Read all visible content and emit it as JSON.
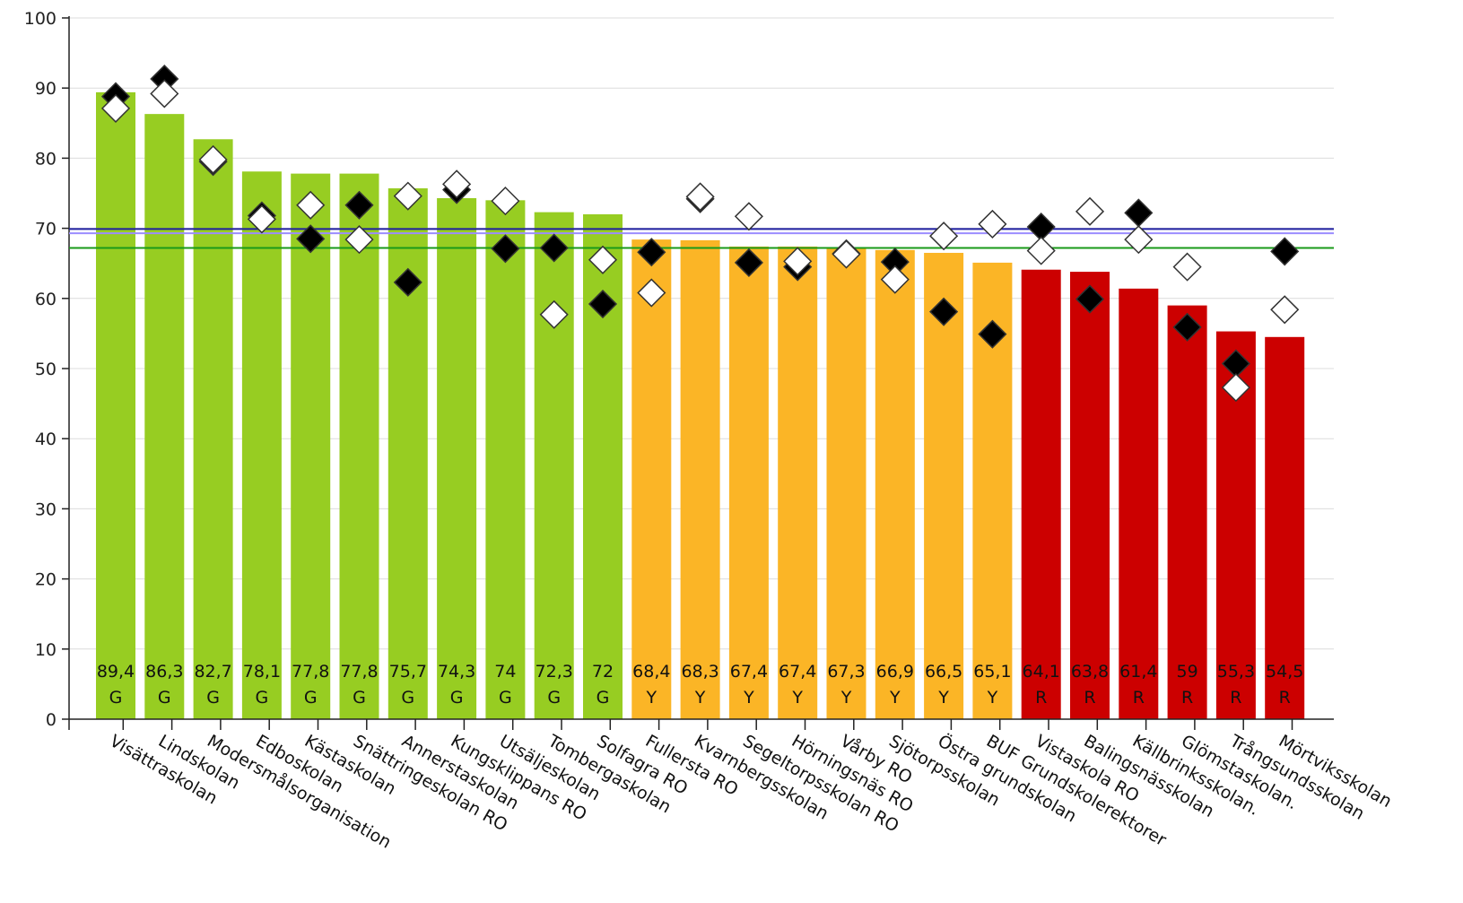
{
  "chart_data": {
    "type": "bar",
    "ylim": [
      0,
      100
    ],
    "yticks": [
      0,
      10,
      20,
      30,
      40,
      50,
      60,
      70,
      80,
      90,
      100
    ],
    "grid": true,
    "categories": [
      "Visättraskolan",
      "Lindskolan",
      "Modersmålsorganisation",
      "Edboskolan",
      "Kästaskolan",
      "Snättringeskolan RO",
      "Annerstaskolan",
      "Kungsklippans RO",
      "Utsäljeskolan",
      "Tombergaskolan",
      "Solfagra RO",
      "Fullersta RO",
      "Kvarnbergsskolan",
      "Segeltorpsskolan RO",
      "Hörningsnäs RO",
      "Vårby RO",
      "Sjötorpsskolan",
      "Östra grundskolan",
      "BUF Grundskolerektorer",
      "Vistaskola RO",
      "Balingsnässkolan",
      "Källbrinksskolan.",
      "Glömstaskolan.",
      "Trångsundsskolan",
      "Mörtviksskolan"
    ],
    "values": [
      89.4,
      86.3,
      82.7,
      78.1,
      77.8,
      77.8,
      75.7,
      74.3,
      74,
      72.3,
      72,
      68.4,
      68.3,
      67.4,
      67.4,
      67.3,
      66.9,
      66.5,
      65.1,
      64.1,
      63.8,
      61.4,
      59,
      55.3,
      54.5
    ],
    "value_labels": [
      "89,4",
      "86,3",
      "82,7",
      "78,1",
      "77,8",
      "77,8",
      "75,7",
      "74,3",
      "74",
      "72,3",
      "72",
      "68,4",
      "68,3",
      "67,4",
      "67,4",
      "67,3",
      "66,9",
      "66,5",
      "65,1",
      "64,1",
      "63,8",
      "61,4",
      "59",
      "55,3",
      "54,5"
    ],
    "grades": [
      "G",
      "G",
      "G",
      "G",
      "G",
      "G",
      "G",
      "G",
      "G",
      "G",
      "G",
      "Y",
      "Y",
      "Y",
      "Y",
      "Y",
      "Y",
      "Y",
      "Y",
      "R",
      "R",
      "R",
      "R",
      "R",
      "R"
    ],
    "grade_colors": {
      "G": "#97cd22",
      "Y": "#fbb526",
      "R": "#cc0000"
    },
    "markers_black": [
      88.8,
      91.3,
      79.5,
      71.8,
      68.5,
      73.3,
      62.3,
      75.5,
      67.1,
      67.2,
      59.2,
      66.6,
      74.2,
      65.1,
      64.5,
      66.4,
      65.2,
      58.1,
      54.9,
      70.2,
      59.9,
      72.2,
      55.9,
      50.7,
      66.7
    ],
    "markers_white": [
      87.1,
      89.2,
      79.8,
      71.3,
      73.3,
      68.4,
      74.6,
      76.3,
      73.9,
      57.7,
      65.5,
      60.8,
      74.5,
      71.7,
      65.3,
      66.3,
      62.7,
      68.9,
      70.6,
      66.8,
      72.4,
      68.4,
      64.5,
      null,
      58.4
    ],
    "reference_lines": [
      {
        "value": 69.9,
        "color": "#1f1fa0"
      },
      {
        "value": 69.3,
        "color": "#9b8cff"
      },
      {
        "value": 67.2,
        "color": "#1a9a1a"
      }
    ],
    "extra_white_marker": {
      "category_index": 23,
      "value": 47.3
    }
  }
}
